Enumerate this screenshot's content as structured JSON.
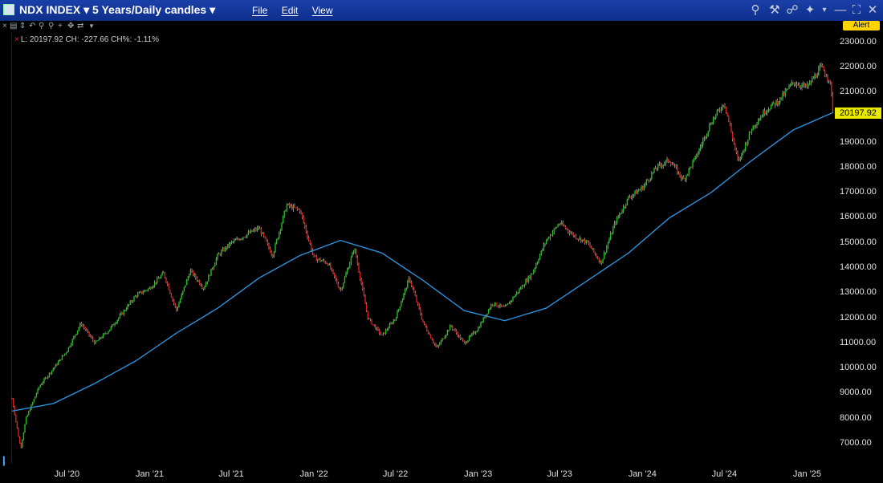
{
  "window": {
    "title": "NDX INDEX ▾  5 Years/Daily candles ▾",
    "menu": [
      "File",
      "Edit",
      "View"
    ],
    "alert_label": "Alert"
  },
  "readout": "L: 20197.92 CH: -227.66 CH%: -1.11%",
  "price_tag": "20197.92",
  "colors": {
    "up": "#19c419",
    "down": "#e01b1b",
    "ma": "#2f8fd8",
    "titlebar": "#1a3fa8"
  },
  "chart_data": {
    "type": "line",
    "title": "",
    "xlabel": "",
    "ylabel": "",
    "ylim": [
      6200,
      23400
    ],
    "yticks": [
      "23000.00",
      "22000.00",
      "21000.00",
      "20000.00",
      "19000.00",
      "18000.00",
      "17000.00",
      "16000.00",
      "15000.00",
      "14000.00",
      "13000.00",
      "12000.00",
      "11000.00",
      "10000.00",
      "9000.00",
      "8000.00",
      "7000.00"
    ],
    "xticks": [
      "Jul '20",
      "Jan '21",
      "Jul '21",
      "Jan '22",
      "Jul '22",
      "Jan '23",
      "Jul '23",
      "Jan '24",
      "Jul '24",
      "Jan '25"
    ],
    "price_points": [
      [
        "2020-03",
        8800
      ],
      [
        "2020-03-20",
        6800
      ],
      [
        "2020-04",
        8000
      ],
      [
        "2020-05",
        9300
      ],
      [
        "2020-06",
        10000
      ],
      [
        "2020-07",
        10700
      ],
      [
        "2020-08",
        11800
      ],
      [
        "2020-09",
        11000
      ],
      [
        "2020-10",
        11500
      ],
      [
        "2020-11",
        12200
      ],
      [
        "2020-12",
        12900
      ],
      [
        "2021-01",
        13200
      ],
      [
        "2021-02",
        13800
      ],
      [
        "2021-03",
        12300
      ],
      [
        "2021-04",
        13900
      ],
      [
        "2021-05",
        13200
      ],
      [
        "2021-06",
        14500
      ],
      [
        "2021-07",
        15000
      ],
      [
        "2021-08",
        15300
      ],
      [
        "2021-09",
        15600
      ],
      [
        "2021-10",
        14500
      ],
      [
        "2021-11",
        16500
      ],
      [
        "2021-12",
        16300
      ],
      [
        "2022-01",
        14400
      ],
      [
        "2022-02",
        14200
      ],
      [
        "2022-03",
        13100
      ],
      [
        "2022-04",
        14800
      ],
      [
        "2022-05",
        12000
      ],
      [
        "2022-06",
        11300
      ],
      [
        "2022-07",
        12000
      ],
      [
        "2022-08",
        13600
      ],
      [
        "2022-09",
        11800
      ],
      [
        "2022-10",
        10800
      ],
      [
        "2022-11",
        11700
      ],
      [
        "2022-12",
        11000
      ],
      [
        "2023-01",
        11600
      ],
      [
        "2023-02",
        12600
      ],
      [
        "2023-03",
        12400
      ],
      [
        "2023-04",
        13100
      ],
      [
        "2023-05",
        13800
      ],
      [
        "2023-06",
        15100
      ],
      [
        "2023-07",
        15800
      ],
      [
        "2023-08",
        15300
      ],
      [
        "2023-09",
        15000
      ],
      [
        "2023-10",
        14200
      ],
      [
        "2023-11",
        15800
      ],
      [
        "2023-12",
        16800
      ],
      [
        "2024-01",
        17200
      ],
      [
        "2024-02",
        18000
      ],
      [
        "2024-03",
        18300
      ],
      [
        "2024-04",
        17500
      ],
      [
        "2024-05",
        18500
      ],
      [
        "2024-06",
        19800
      ],
      [
        "2024-07",
        20600
      ],
      [
        "2024-08",
        18200
      ],
      [
        "2024-09",
        19600
      ],
      [
        "2024-10",
        20300
      ],
      [
        "2024-11",
        20700
      ],
      [
        "2024-12",
        21400
      ],
      [
        "2025-01",
        21200
      ],
      [
        "2025-02",
        22000
      ],
      [
        "2025-02-20",
        21500
      ],
      [
        "2025-02-28",
        20197.92
      ]
    ],
    "ma_points": [
      [
        "2020-03",
        8300
      ],
      [
        "2020-06",
        8600
      ],
      [
        "2020-09",
        9400
      ],
      [
        "2020-12",
        10300
      ],
      [
        "2021-03",
        11400
      ],
      [
        "2021-06",
        12400
      ],
      [
        "2021-09",
        13600
      ],
      [
        "2021-12",
        14500
      ],
      [
        "2022-03",
        15100
      ],
      [
        "2022-06",
        14600
      ],
      [
        "2022-09",
        13500
      ],
      [
        "2022-12",
        12300
      ],
      [
        "2023-03",
        11900
      ],
      [
        "2023-06",
        12400
      ],
      [
        "2023-09",
        13500
      ],
      [
        "2023-12",
        14600
      ],
      [
        "2024-03",
        16000
      ],
      [
        "2024-06",
        17000
      ],
      [
        "2024-09",
        18300
      ],
      [
        "2024-12",
        19500
      ],
      [
        "2025-02-28",
        20200
      ]
    ],
    "series": [
      {
        "name": "",
        "type": "candles"
      },
      {
        "name": "",
        "type": "moving-average"
      }
    ]
  }
}
